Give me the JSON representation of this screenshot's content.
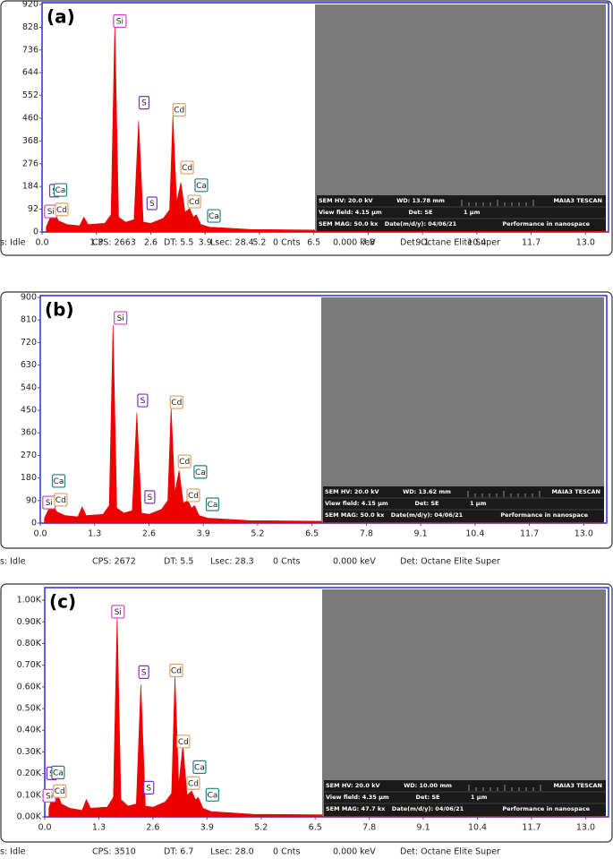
{
  "chart_data": [
    {
      "type": "area",
      "panel_label": "(a)",
      "color": "#ee0000",
      "x": [
        0.1,
        0.2,
        0.28,
        0.4,
        0.6,
        0.9,
        1.0,
        1.1,
        1.5,
        1.65,
        1.74,
        1.83,
        2.0,
        2.2,
        2.31,
        2.42,
        2.6,
        2.9,
        3.05,
        3.13,
        3.22,
        3.32,
        3.42,
        3.53,
        3.62,
        3.69,
        3.8,
        4.0,
        5.0,
        6.5,
        8.0,
        10.0,
        13.5
      ],
      "values": [
        20,
        60,
        80,
        45,
        30,
        25,
        60,
        30,
        35,
        70,
        840,
        60,
        40,
        50,
        450,
        40,
        35,
        55,
        90,
        470,
        120,
        200,
        80,
        95,
        60,
        70,
        30,
        20,
        10,
        8,
        5,
        3,
        2
      ],
      "xlim": [
        0,
        13.55
      ],
      "ylim": [
        0,
        920
      ],
      "xticks": [
        {
          "value": 0,
          "label": "0.0"
        },
        1.3,
        2.6,
        3.9,
        5.2,
        6.5,
        7.8,
        9.1,
        10.4,
        11.7,
        {
          "value": 13,
          "label": "13.0"
        }
      ],
      "yticks": [
        0,
        92,
        184,
        276,
        368,
        460,
        552,
        644,
        736,
        828,
        920
      ],
      "annotations": [
        {
          "text": "Si",
          "x": 1.86,
          "y": 853,
          "color": "#d040d0"
        },
        {
          "text": "S",
          "x": 2.44,
          "y": 523,
          "color": "#8030c0"
        },
        {
          "text": "Cd",
          "x": 3.28,
          "y": 494,
          "color": "#e0a060"
        },
        {
          "text": "Cd",
          "x": 3.47,
          "y": 261,
          "color": "#e0a060"
        },
        {
          "text": "Ca",
          "x": 3.81,
          "y": 189,
          "color": "#208080"
        },
        {
          "text": "Cd",
          "x": 3.64,
          "y": 123,
          "color": "#e0a060"
        },
        {
          "text": "Ca",
          "x": 4.11,
          "y": 65,
          "color": "#208080"
        },
        {
          "text": "S",
          "x": 2.63,
          "y": 116,
          "color": "#8030c0"
        },
        {
          "text": "Si",
          "x": 0.21,
          "y": 83,
          "color": "#d040d0"
        },
        {
          "text": "S",
          "x": 0.3,
          "y": 167,
          "color": "#8030c0"
        },
        {
          "text": "Ca",
          "x": 0.44,
          "y": 170,
          "color": "#208080"
        },
        {
          "text": "Cd",
          "x": 0.47,
          "y": 91,
          "color": "#e0a060"
        }
      ],
      "status": [
        "s: Idle",
        "CPS: 2663",
        "DT: 5.5",
        "Lsec: 28.4",
        "0 Cnts",
        "0.000 keV",
        "Det: Octane Elite Super"
      ],
      "sem_info": [
        "SEM HV: 20.0 kV",
        "WD: 13.78 mm",
        "MAIA3 TESCAN",
        "View field: 4.15 µm",
        "Det: SE",
        "1 µm",
        "SEM MAG: 50.0 kx",
        "Date(m/d/y): 04/06/21",
        "Performance in nanospace"
      ]
    },
    {
      "type": "area",
      "panel_label": "(b)",
      "color": "#ee0000",
      "x": [
        0.1,
        0.2,
        0.28,
        0.4,
        0.6,
        0.9,
        1.0,
        1.1,
        1.5,
        1.65,
        1.74,
        1.83,
        2.0,
        2.2,
        2.31,
        2.42,
        2.6,
        2.9,
        3.05,
        3.13,
        3.22,
        3.32,
        3.42,
        3.53,
        3.62,
        3.69,
        3.8,
        4.0,
        5.0,
        6.5,
        8.0,
        10.0,
        13.5
      ],
      "values": [
        20,
        55,
        75,
        45,
        30,
        25,
        65,
        30,
        35,
        70,
        790,
        60,
        40,
        50,
        440,
        40,
        35,
        55,
        90,
        460,
        120,
        210,
        80,
        90,
        60,
        70,
        30,
        20,
        10,
        8,
        5,
        3,
        2
      ],
      "xlim": [
        0,
        13.55
      ],
      "ylim": [
        0,
        900
      ],
      "xticks": [
        {
          "value": 0,
          "label": "0.0"
        },
        1.3,
        2.6,
        3.9,
        5.2,
        6.5,
        7.8,
        9.1,
        10.4,
        11.7,
        {
          "value": 13,
          "label": "13.0"
        }
      ],
      "yticks": [
        0,
        90,
        180,
        270,
        360,
        450,
        540,
        630,
        720,
        810,
        900
      ],
      "annotations": [
        {
          "text": "Si",
          "x": 1.92,
          "y": 818,
          "color": "#d040d0"
        },
        {
          "text": "S",
          "x": 2.45,
          "y": 489,
          "color": "#8030c0"
        },
        {
          "text": "Cd",
          "x": 3.26,
          "y": 482,
          "color": "#e0a060"
        },
        {
          "text": "Cd",
          "x": 3.45,
          "y": 246,
          "color": "#e0a060"
        },
        {
          "text": "Ca",
          "x": 3.83,
          "y": 204,
          "color": "#208080"
        },
        {
          "text": "Cd",
          "x": 3.66,
          "y": 111,
          "color": "#e0a060"
        },
        {
          "text": "Ca",
          "x": 4.12,
          "y": 75,
          "color": "#208080"
        },
        {
          "text": "S",
          "x": 2.62,
          "y": 104,
          "color": "#8030c0"
        },
        {
          "text": "Si",
          "x": 0.21,
          "y": 82,
          "color": "#d040d0"
        },
        {
          "text": "Ca",
          "x": 0.44,
          "y": 168,
          "color": "#208080"
        },
        {
          "text": "Cd",
          "x": 0.49,
          "y": 93,
          "color": "#e0a060"
        }
      ],
      "status": [
        "s: Idle",
        "CPS: 2672",
        "DT: 5.5",
        "Lsec: 28.3",
        "0 Cnts",
        "0.000 keV",
        "Det: Octane Elite Super"
      ],
      "sem_info": [
        "SEM HV: 20.0 kV",
        "WD: 13.62 mm",
        "MAIA3 TESCAN",
        "View field: 4.15 µm",
        "Det: SE",
        "1 µm",
        "SEM MAG: 50.0 kx",
        "Date(m/d/y): 04/06/21",
        "Performance in nanospace"
      ]
    },
    {
      "type": "area",
      "panel_label": "(c)",
      "color": "#ee0000",
      "x": [
        0.1,
        0.2,
        0.28,
        0.4,
        0.6,
        0.9,
        1.0,
        1.1,
        1.5,
        1.65,
        1.74,
        1.83,
        2.0,
        2.2,
        2.31,
        2.42,
        2.6,
        2.9,
        3.05,
        3.13,
        3.22,
        3.32,
        3.42,
        3.53,
        3.62,
        3.69,
        3.8,
        4.0,
        5.0,
        6.5,
        8.0,
        10.0,
        13.5
      ],
      "values": [
        40,
        100,
        120,
        60,
        40,
        30,
        80,
        40,
        45,
        90,
        930,
        80,
        50,
        60,
        610,
        50,
        45,
        70,
        110,
        650,
        150,
        330,
        100,
        120,
        80,
        90,
        40,
        25,
        12,
        10,
        6,
        4,
        2
      ],
      "xlim": [
        0,
        13.55
      ],
      "ylim": [
        0,
        1050
      ],
      "xticks": [
        {
          "value": 0,
          "label": "0.0"
        },
        1.3,
        2.6,
        3.9,
        5.2,
        6.5,
        7.8,
        9.1,
        10.4,
        11.7,
        {
          "value": 13,
          "label": "13.0"
        }
      ],
      "yticks": [
        {
          "value": 0,
          "label": "0.00K"
        },
        {
          "value": 100,
          "label": "0.10K"
        },
        {
          "value": 200,
          "label": "0.20K"
        },
        {
          "value": 300,
          "label": "0.30K"
        },
        {
          "value": 400,
          "label": "0.40K"
        },
        {
          "value": 500,
          "label": "0.50K"
        },
        {
          "value": 600,
          "label": "0.60K"
        },
        {
          "value": 700,
          "label": "0.70K"
        },
        {
          "value": 800,
          "label": "0.80K"
        },
        {
          "value": 900,
          "label": "0.90K"
        },
        {
          "value": 1000,
          "label": "1.00K"
        }
      ],
      "annotations": [
        {
          "text": "Si",
          "x": 1.76,
          "y": 947,
          "color": "#d040d0"
        },
        {
          "text": "S",
          "x": 2.38,
          "y": 668,
          "color": "#8030c0"
        },
        {
          "text": "Cd",
          "x": 3.16,
          "y": 676,
          "color": "#e0a060"
        },
        {
          "text": "Cd",
          "x": 3.33,
          "y": 348,
          "color": "#e0a060"
        },
        {
          "text": "Ca",
          "x": 3.72,
          "y": 230,
          "color": "#208080"
        },
        {
          "text": "Cd",
          "x": 3.57,
          "y": 156,
          "color": "#e0a060"
        },
        {
          "text": "Ca",
          "x": 4.03,
          "y": 102,
          "color": "#208080"
        },
        {
          "text": "S",
          "x": 2.5,
          "y": 135,
          "color": "#8030c0"
        },
        {
          "text": "Si",
          "x": 0.11,
          "y": 98,
          "color": "#d040d0"
        },
        {
          "text": "S",
          "x": 0.17,
          "y": 201,
          "color": "#8030c0"
        },
        {
          "text": "Ca",
          "x": 0.32,
          "y": 205,
          "color": "#208080"
        },
        {
          "text": "Cd",
          "x": 0.36,
          "y": 119,
          "color": "#e0a060"
        }
      ],
      "status": [
        "s: Idle",
        "CPS: 3510",
        "DT: 6.7",
        "Lsec: 28.0",
        "0 Cnts",
        "0.000 keV",
        "Det: Octane Elite Super"
      ],
      "sem_info": [
        "SEM HV: 20.0 kV",
        "WD: 10.00 mm",
        "MAIA3 TESCAN",
        "View field: 4.35 µm",
        "Det: SE",
        "1 µm",
        "SEM MAG: 47.7 kx",
        "Date(m/d/y): 04/06/21",
        "Performance in nanospace"
      ]
    }
  ]
}
